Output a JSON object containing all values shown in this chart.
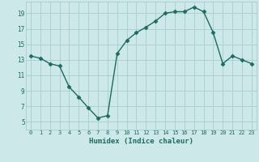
{
  "x": [
    0,
    1,
    2,
    3,
    4,
    5,
    6,
    7,
    8,
    9,
    10,
    11,
    12,
    13,
    14,
    15,
    16,
    17,
    18,
    19,
    20,
    21,
    22,
    23
  ],
  "y": [
    13.5,
    13.2,
    12.5,
    12.2,
    9.5,
    8.2,
    6.8,
    5.5,
    5.8,
    13.8,
    15.5,
    16.5,
    17.2,
    18.0,
    19.0,
    19.2,
    19.2,
    19.8,
    19.2,
    16.5,
    12.5,
    13.5,
    13.0,
    12.5
  ],
  "xlabel": "Humidex (Indice chaleur)",
  "ylabel": "",
  "xlim": [
    -0.5,
    23.5
  ],
  "ylim": [
    4,
    20.5
  ],
  "yticks": [
    5,
    7,
    9,
    11,
    13,
    15,
    17,
    19
  ],
  "xticks": [
    0,
    1,
    2,
    3,
    4,
    5,
    6,
    7,
    8,
    9,
    10,
    11,
    12,
    13,
    14,
    15,
    16,
    17,
    18,
    19,
    20,
    21,
    22,
    23
  ],
  "line_color": "#1a6b60",
  "marker": "D",
  "marker_size": 2.5,
  "bg_color": "#cce8e8",
  "grid_color": "#aacccc",
  "tick_color": "#1a6b60",
  "xlabel_color": "#1a6b60"
}
